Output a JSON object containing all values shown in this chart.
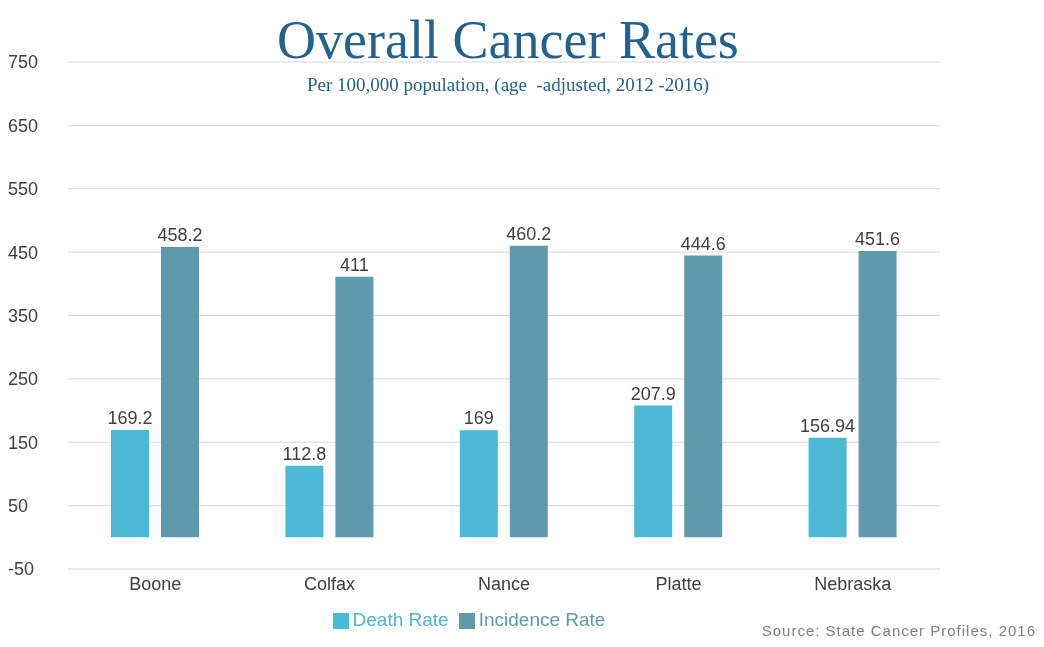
{
  "chart_data": {
    "type": "bar",
    "title": "Overall Cancer Rates",
    "subtitle": "Per 100,000 population, (age  -adjusted, 2012 -2016)",
    "categories": [
      "Boone",
      "Colfax",
      "Nance",
      "Platte",
      "Nebraska"
    ],
    "series": [
      {
        "name": "Death Rate",
        "color": "#4bb8d4",
        "values": [
          169.2,
          112.8,
          169,
          207.9,
          156.94
        ]
      },
      {
        "name": "Incidence Rate",
        "color": "#5e9aab",
        "values": [
          458.2,
          411,
          460.2,
          444.6,
          451.6
        ]
      }
    ],
    "ylim": [
      -50,
      750
    ],
    "yticks": [
      -50,
      50,
      150,
      250,
      350,
      450,
      550,
      650,
      750
    ],
    "grid": "y",
    "legend": "bottom",
    "data_labels": true,
    "annotations": [
      "Source: State Cancer Profiles, 2016"
    ]
  }
}
